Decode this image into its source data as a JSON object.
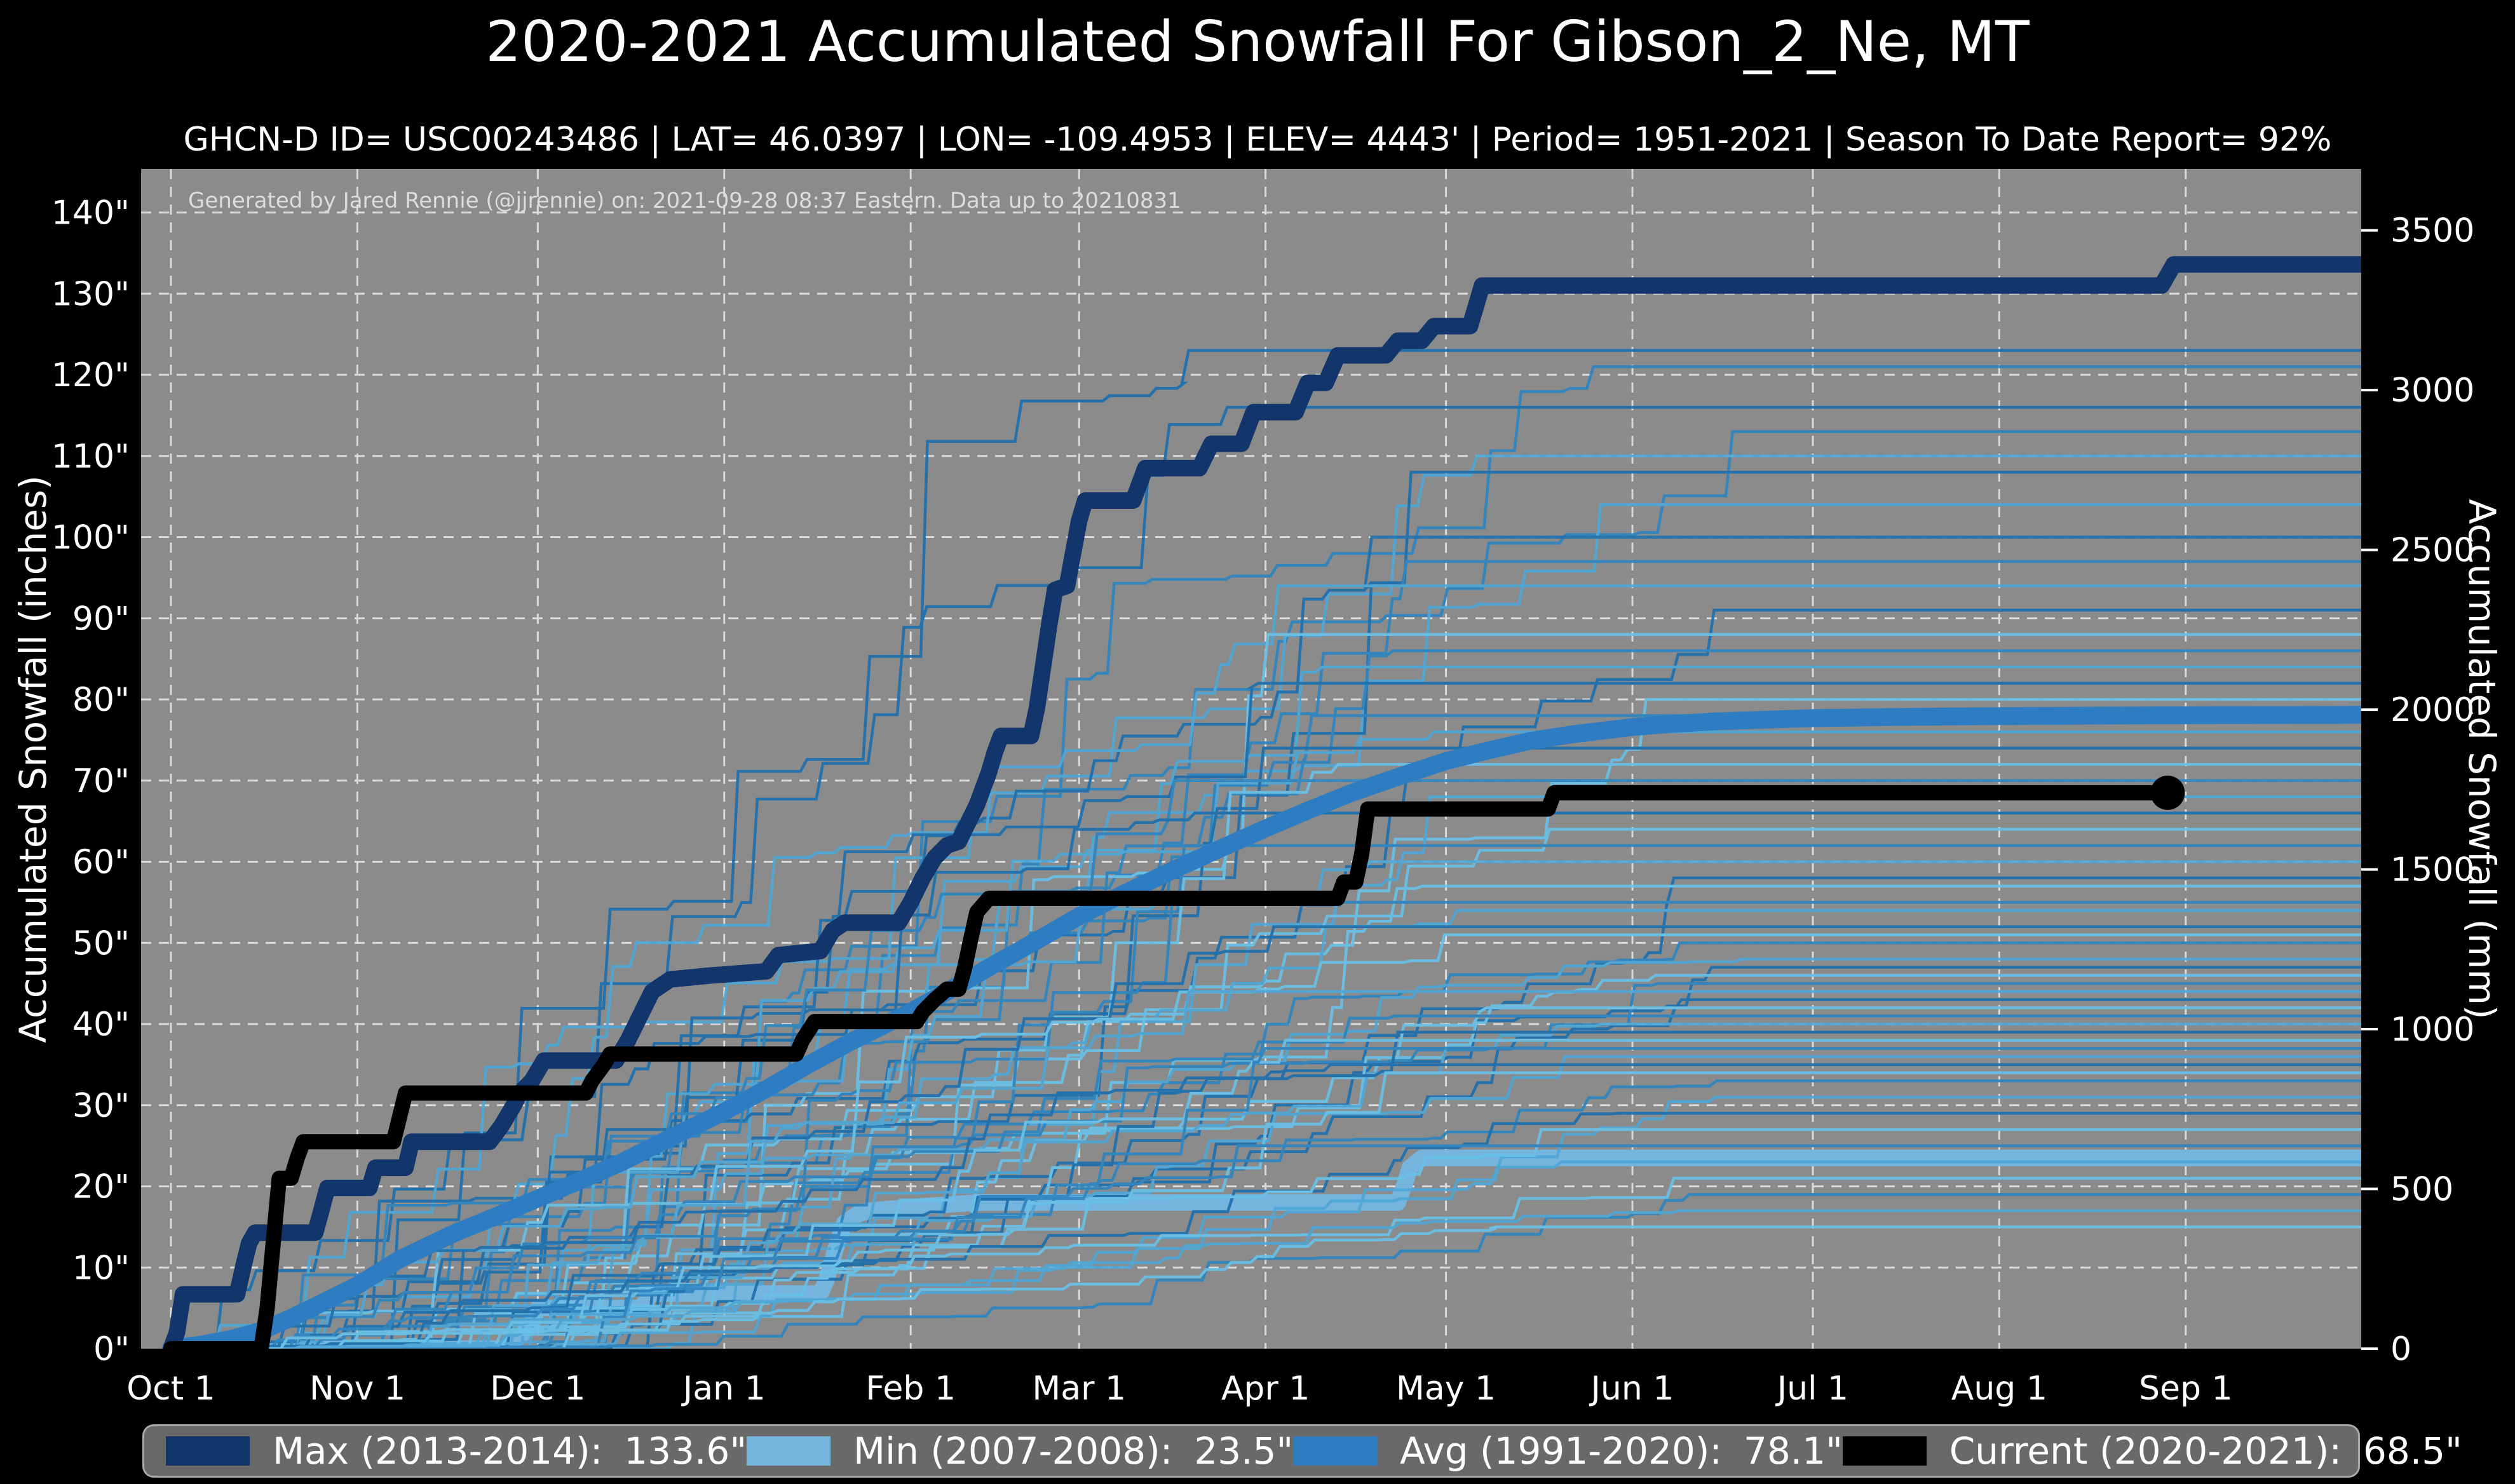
{
  "title": "2020-2021 Accumulated Snowfall For Gibson_2_Ne, MT",
  "subtitle": "GHCN-D ID= USC00243486 | LAT= 46.0397 | LON= -109.4953 | ELEV= 4443' | Period= 1951-2021 | Season To Date Report= 92%",
  "annotation": "Generated by Jared Rennie (@jjrennie) on: 2021-09-28 08:37 Eastern. Data up to 20210831",
  "colors": {
    "figure_bg": "#000000",
    "plot_bg": "#8b8b8b",
    "grid": "#e8e8e8",
    "max": "#12356b",
    "min": "#74b4dd",
    "avg": "#2e7cc1",
    "current": "#000000",
    "background_palette": [
      "#1d6fae",
      "#2e85c2",
      "#4fa8d8",
      "#68c2e8"
    ],
    "text": "#ffffff"
  },
  "axes": {
    "left_title": "Accumulated Snowfall (inches)",
    "right_title": "Accumulated Snowfall (mm)",
    "left_ticks": [
      {
        "v": 0,
        "label": "0\""
      },
      {
        "v": 10,
        "label": "10\""
      },
      {
        "v": 20,
        "label": "20\""
      },
      {
        "v": 30,
        "label": "30\""
      },
      {
        "v": 40,
        "label": "40\""
      },
      {
        "v": 50,
        "label": "50\""
      },
      {
        "v": 60,
        "label": "60\""
      },
      {
        "v": 70,
        "label": "70\""
      },
      {
        "v": 80,
        "label": "80\""
      },
      {
        "v": 90,
        "label": "90\""
      },
      {
        "v": 100,
        "label": "100\""
      },
      {
        "v": 110,
        "label": "110\""
      },
      {
        "v": 120,
        "label": "120\""
      },
      {
        "v": 130,
        "label": "130\""
      },
      {
        "v": 140,
        "label": "140\""
      }
    ],
    "right_ticks": [
      {
        "mm": 0,
        "label": "0"
      },
      {
        "mm": 500,
        "label": "500"
      },
      {
        "mm": 1000,
        "label": "1000"
      },
      {
        "mm": 1500,
        "label": "1500"
      },
      {
        "mm": 2000,
        "label": "2000"
      },
      {
        "mm": 2500,
        "label": "2500"
      },
      {
        "mm": 3000,
        "label": "3000"
      },
      {
        "mm": 3500,
        "label": "3500"
      }
    ],
    "x_ticks": [
      {
        "day": 0,
        "label": "Oct 1"
      },
      {
        "day": 31,
        "label": "Nov 1"
      },
      {
        "day": 61,
        "label": "Dec 1"
      },
      {
        "day": 92,
        "label": "Jan 1"
      },
      {
        "day": 123,
        "label": "Feb 1"
      },
      {
        "day": 151,
        "label": "Mar 1"
      },
      {
        "day": 182,
        "label": "Apr 1"
      },
      {
        "day": 212,
        "label": "May 1"
      },
      {
        "day": 243,
        "label": "Jun 1"
      },
      {
        "day": 273,
        "label": "Jul 1"
      },
      {
        "day": 304,
        "label": "Aug 1"
      },
      {
        "day": 335,
        "label": "Sep 1"
      }
    ]
  },
  "chart_data": {
    "type": "line",
    "x_unit": "days_since_oct_1",
    "x_range": [
      -5,
      364.4
    ],
    "y_range_inches": [
      0,
      145.3
    ],
    "grid": "dashed-white",
    "series": [
      {
        "name": "Max (2013-2014)",
        "final": 133.6,
        "color_key": "max",
        "width": 26,
        "points": [
          [
            0,
            0
          ],
          [
            1,
            2
          ],
          [
            2,
            6.7
          ],
          [
            11,
            6.7
          ],
          [
            12,
            10
          ],
          [
            13,
            13
          ],
          [
            14,
            14.3
          ],
          [
            24,
            14.3
          ],
          [
            25,
            17
          ],
          [
            26,
            19.8
          ],
          [
            33,
            19.8
          ],
          [
            34,
            22.3
          ],
          [
            39,
            22.3
          ],
          [
            40,
            25.5
          ],
          [
            53,
            25.5
          ],
          [
            55,
            27.5
          ],
          [
            57,
            30
          ],
          [
            58,
            31.5
          ],
          [
            60,
            33
          ],
          [
            62,
            35.5
          ],
          [
            74,
            35.5
          ],
          [
            76,
            38
          ],
          [
            78,
            41
          ],
          [
            80,
            44
          ],
          [
            83,
            45.5
          ],
          [
            90,
            46
          ],
          [
            99,
            46.5
          ],
          [
            101,
            48.5
          ],
          [
            108,
            49
          ],
          [
            110,
            51.5
          ],
          [
            112,
            52.5
          ],
          [
            121,
            52.5
          ],
          [
            123,
            55
          ],
          [
            125,
            58
          ],
          [
            127,
            60.5
          ],
          [
            129,
            62
          ],
          [
            131,
            62.5
          ],
          [
            132,
            64
          ],
          [
            133,
            65.5
          ],
          [
            134,
            67
          ],
          [
            135,
            69
          ],
          [
            136,
            71
          ],
          [
            137,
            73.5
          ],
          [
            138,
            75.5
          ],
          [
            143,
            75.5
          ],
          [
            144,
            79
          ],
          [
            145,
            84
          ],
          [
            146,
            89
          ],
          [
            147,
            93.5
          ],
          [
            149,
            94
          ],
          [
            150,
            98
          ],
          [
            151,
            102
          ],
          [
            152,
            104.5
          ],
          [
            160,
            104.5
          ],
          [
            162,
            108.5
          ],
          [
            171,
            108.5
          ],
          [
            173,
            111.5
          ],
          [
            178,
            111.5
          ],
          [
            180,
            115.4
          ],
          [
            187,
            115.4
          ],
          [
            189,
            119
          ],
          [
            192,
            119
          ],
          [
            194,
            122.4
          ],
          [
            202,
            122.4
          ],
          [
            204,
            124.2
          ],
          [
            208,
            124.2
          ],
          [
            210,
            126
          ],
          [
            216,
            126
          ],
          [
            218,
            131
          ],
          [
            331,
            131
          ],
          [
            333,
            133.6
          ],
          [
            364,
            133.6
          ]
        ]
      },
      {
        "name": "Min (2007-2008)",
        "final": 23.5,
        "color_key": "min",
        "width": 26,
        "points": [
          [
            0,
            0
          ],
          [
            56,
            0
          ],
          [
            58,
            1.5
          ],
          [
            60,
            3
          ],
          [
            61,
            5
          ],
          [
            78,
            5
          ],
          [
            80,
            6.8
          ],
          [
            108,
            6.8
          ],
          [
            109,
            8.5
          ],
          [
            110,
            11
          ],
          [
            111,
            13.5
          ],
          [
            112,
            15.5
          ],
          [
            114,
            16.5
          ],
          [
            116,
            17
          ],
          [
            124,
            17.5
          ],
          [
            134,
            18
          ],
          [
            204,
            18
          ],
          [
            205,
            20
          ],
          [
            206,
            22.3
          ],
          [
            208,
            23.5
          ],
          [
            364,
            23.5
          ]
        ]
      },
      {
        "name": "Avg (1991-2020)",
        "final": 78.1,
        "color_key": "avg",
        "width": 28,
        "points": [
          [
            0,
            0
          ],
          [
            5,
            0.5
          ],
          [
            10,
            1.2
          ],
          [
            15,
            2.2
          ],
          [
            20,
            3.8
          ],
          [
            25,
            5.6
          ],
          [
            31,
            7.8
          ],
          [
            38,
            11
          ],
          [
            47,
            14.2
          ],
          [
            54,
            16.3
          ],
          [
            61,
            18.5
          ],
          [
            68,
            20.7
          ],
          [
            75,
            23
          ],
          [
            82,
            25.6
          ],
          [
            92,
            29.2
          ],
          [
            99,
            32
          ],
          [
            106,
            35
          ],
          [
            113,
            37.8
          ],
          [
            123,
            41.5
          ],
          [
            130,
            44.4
          ],
          [
            137,
            47.4
          ],
          [
            144,
            50.3
          ],
          [
            151,
            53.3
          ],
          [
            158,
            55.9
          ],
          [
            165,
            58.4
          ],
          [
            172,
            60.8
          ],
          [
            182,
            64.1
          ],
          [
            189,
            66.3
          ],
          [
            196,
            68.4
          ],
          [
            203,
            70.2
          ],
          [
            212,
            72.4
          ],
          [
            219,
            73.7
          ],
          [
            226,
            74.9
          ],
          [
            233,
            75.7
          ],
          [
            243,
            76.6
          ],
          [
            250,
            77
          ],
          [
            257,
            77.3
          ],
          [
            273,
            77.7
          ],
          [
            288,
            77.85
          ],
          [
            304,
            77.95
          ],
          [
            320,
            78
          ],
          [
            335,
            78.05
          ],
          [
            364,
            78.1
          ]
        ]
      },
      {
        "name": "Current (2020-2021)",
        "final": 68.5,
        "color_key": "current",
        "width": 24,
        "end_marker": true,
        "points": [
          [
            0,
            0
          ],
          [
            15,
            0
          ],
          [
            16,
            5
          ],
          [
            17,
            13
          ],
          [
            18,
            21
          ],
          [
            20,
            21
          ],
          [
            21,
            23.5
          ],
          [
            22,
            25.5
          ],
          [
            37,
            25.5
          ],
          [
            38,
            28.5
          ],
          [
            39,
            31.5
          ],
          [
            69,
            31.5
          ],
          [
            70,
            33
          ],
          [
            72,
            35
          ],
          [
            73,
            36.3
          ],
          [
            104,
            36.3
          ],
          [
            105,
            38
          ],
          [
            107,
            40.3
          ],
          [
            124,
            40.3
          ],
          [
            125,
            41.5
          ],
          [
            127,
            43
          ],
          [
            129,
            44.3
          ],
          [
            131,
            44.3
          ],
          [
            132,
            47
          ],
          [
            133,
            50.5
          ],
          [
            134,
            53.8
          ],
          [
            136,
            55.5
          ],
          [
            194,
            55.5
          ],
          [
            195,
            57.5
          ],
          [
            197,
            57.5
          ],
          [
            198,
            61
          ],
          [
            199,
            66.5
          ],
          [
            229,
            66.5
          ],
          [
            230,
            68.5
          ],
          [
            332,
            68.5
          ]
        ]
      }
    ],
    "background_years": {
      "description": "individual seasons 1951-2021, thin stepped lines; [final_inches, palette_index, seed]",
      "width": 4.5,
      "lines": [
        [
          123,
          0,
          11
        ],
        [
          121,
          1,
          12
        ],
        [
          116,
          0,
          13
        ],
        [
          113,
          1,
          14
        ],
        [
          110,
          2,
          15
        ],
        [
          108,
          0,
          16
        ],
        [
          104,
          2,
          17
        ],
        [
          100,
          0,
          18
        ],
        [
          97,
          1,
          19
        ],
        [
          94,
          2,
          20
        ],
        [
          91,
          0,
          21
        ],
        [
          88,
          3,
          22
        ],
        [
          86,
          1,
          23
        ],
        [
          84,
          2,
          24
        ],
        [
          82,
          0,
          25
        ],
        [
          80,
          3,
          26
        ],
        [
          78,
          1,
          27
        ],
        [
          76,
          2,
          28
        ],
        [
          74,
          0,
          29
        ],
        [
          72,
          3,
          30
        ],
        [
          70,
          1,
          31
        ],
        [
          68,
          2,
          32
        ],
        [
          66,
          0,
          33
        ],
        [
          64,
          3,
          34
        ],
        [
          62,
          1,
          35
        ],
        [
          60,
          2,
          36
        ],
        [
          58,
          0,
          37
        ],
        [
          57,
          3,
          38
        ],
        [
          55,
          1,
          39
        ],
        [
          54,
          2,
          40
        ],
        [
          52,
          0,
          41
        ],
        [
          51,
          3,
          42
        ],
        [
          50,
          1,
          43
        ],
        [
          48,
          2,
          44
        ],
        [
          47,
          0,
          45
        ],
        [
          46,
          3,
          46
        ],
        [
          45,
          1,
          47
        ],
        [
          44,
          2,
          48
        ],
        [
          43,
          0,
          49
        ],
        [
          42,
          3,
          50
        ],
        [
          41,
          1,
          51
        ],
        [
          40,
          2,
          52
        ],
        [
          39,
          0,
          53
        ],
        [
          38,
          3,
          54
        ],
        [
          37,
          1,
          55
        ],
        [
          36,
          2,
          56
        ],
        [
          35,
          0,
          57
        ],
        [
          34,
          3,
          58
        ],
        [
          33,
          1,
          59
        ],
        [
          31,
          2,
          60
        ],
        [
          29,
          0,
          61
        ],
        [
          27,
          3,
          62
        ],
        [
          25,
          1,
          63
        ],
        [
          23,
          2,
          64
        ],
        [
          21,
          3,
          65
        ],
        [
          19,
          1,
          66
        ],
        [
          17,
          2,
          67
        ],
        [
          15,
          3,
          68
        ]
      ]
    }
  },
  "legend": {
    "items": [
      {
        "label": "Max (2013-2014):",
        "value": "133.6\"",
        "color": "#12356b"
      },
      {
        "label": "Min (2007-2008):",
        "value": "23.5\"",
        "color": "#74b4dd"
      },
      {
        "label": "Avg (1991-2020):",
        "value": "78.1\"",
        "color": "#2e7cc1"
      },
      {
        "label": "Current (2020-2021):",
        "value": "68.5\"",
        "color": "#000000"
      }
    ]
  }
}
